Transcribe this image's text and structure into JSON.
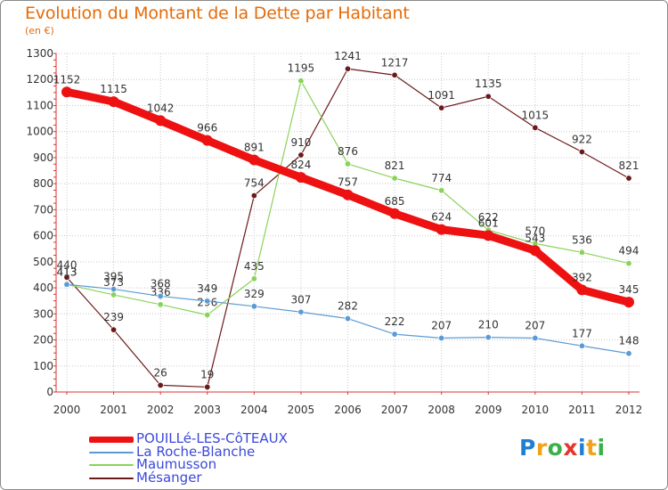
{
  "title": "Evolution du Montant de la Dette par Habitant",
  "subtitle": "(en €)",
  "logo": {
    "letters": [
      "P",
      "r",
      "o",
      "x",
      "i",
      "t",
      "i"
    ],
    "colors": [
      "#1f7fd4",
      "#f2a21b",
      "#3ab04a",
      "#e5352b",
      "#1f7fd4",
      "#f2a21b",
      "#3ab04a"
    ]
  },
  "chart_data": {
    "type": "line",
    "x": [
      "2000",
      "2001",
      "2002",
      "2003",
      "2004",
      "2005",
      "2006",
      "2007",
      "2008",
      "2009",
      "2010",
      "2011",
      "2012"
    ],
    "ylim": [
      0,
      1300
    ],
    "yticks": [
      "0",
      "100",
      "200",
      "300",
      "400",
      "500",
      "600",
      "700",
      "800",
      "900",
      "1000",
      "1100",
      "1200",
      "1300"
    ],
    "grid": true,
    "legend_position": "bottom-left",
    "series": [
      {
        "name": "Mésanger",
        "color": "#6b1a1a",
        "values": [
          440,
          239,
          26,
          19,
          754,
          910,
          1241,
          1217,
          1091,
          1135,
          1015,
          922,
          821
        ],
        "labels": [
          "440",
          "239",
          "26",
          "19",
          "754",
          "910",
          "1241",
          "1217",
          "1091",
          "1135",
          "1015",
          "922",
          "821"
        ]
      },
      {
        "name": "Maumusson",
        "color": "#8ad35a",
        "values": [
          413,
          373,
          336,
          296,
          435,
          1195,
          876,
          821,
          774,
          622,
          570,
          536,
          494
        ],
        "labels": [
          "413",
          "373",
          "336",
          "296",
          "435",
          "1195",
          "876",
          "821",
          "774",
          "622",
          "570",
          "536",
          "494"
        ]
      },
      {
        "name": "La Roche-Blanche",
        "color": "#5b9bd5",
        "values": [
          413,
          395,
          368,
          349,
          329,
          307,
          282,
          222,
          207,
          210,
          207,
          177,
          148
        ],
        "labels": [
          "413",
          "395",
          "368",
          "349",
          "329",
          "307",
          "282",
          "222",
          "207",
          "210",
          "207",
          "177",
          "148"
        ]
      },
      {
        "name": "POUILLé-LES-CôTEAUX",
        "color": "#ee1111",
        "values": [
          1152,
          1115,
          1042,
          966,
          891,
          824,
          757,
          685,
          624,
          601,
          543,
          392,
          345
        ],
        "labels": [
          "1152",
          "1115",
          "1042",
          "966",
          "891",
          "824",
          "757",
          "685",
          "624",
          "601",
          "543",
          "392",
          "345"
        ]
      }
    ],
    "legend": [
      "POUILLé-LES-CôTEAUX",
      "La Roche-Blanche",
      "Maumusson",
      "Mésanger"
    ]
  }
}
